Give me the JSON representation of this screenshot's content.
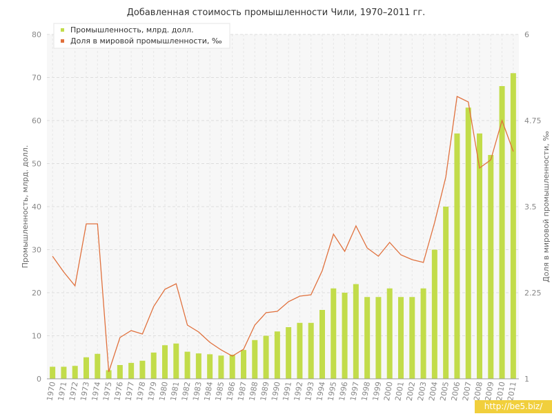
{
  "chart_data": {
    "type": "bar+line",
    "title": "Добавленная стоимость промышленности Чили, 1970–2011 гг.",
    "categories": [
      "1970",
      "1971",
      "1972",
      "1973",
      "1974",
      "1975",
      "1976",
      "1977",
      "1978",
      "1979",
      "1980",
      "1981",
      "1982",
      "1983",
      "1984",
      "1985",
      "1986",
      "1987",
      "1988",
      "1989",
      "1990",
      "1991",
      "1992",
      "1993",
      "1994",
      "1995",
      "1996",
      "1997",
      "1998",
      "1999",
      "2000",
      "2001",
      "2002",
      "2003",
      "2004",
      "2005",
      "2006",
      "2007",
      "2008",
      "2009",
      "2010",
      "2011"
    ],
    "series": [
      {
        "name": "Промышленность, млрд. долл.",
        "type": "bar",
        "axis": "left",
        "color": "#c2dc4a",
        "values": [
          2.8,
          2.8,
          3.0,
          5.0,
          5.8,
          2.0,
          3.2,
          3.7,
          4.2,
          6.1,
          7.8,
          8.2,
          6.3,
          5.9,
          5.7,
          5.4,
          5.6,
          6.7,
          9.0,
          10.0,
          11.0,
          12.0,
          13.0,
          13.0,
          16.0,
          21.0,
          20.0,
          22.0,
          19.0,
          19.0,
          21.0,
          19.0,
          19.0,
          21.0,
          30.0,
          40.0,
          57.0,
          63.0,
          57.0,
          52.0,
          68.0,
          71.0
        ]
      },
      {
        "name": "Доля в мировой промышленности, ‰",
        "type": "line",
        "axis": "right",
        "color": "#e0703c",
        "values": [
          2.78,
          2.55,
          2.35,
          3.25,
          3.25,
          1.1,
          1.6,
          1.7,
          1.65,
          2.05,
          2.3,
          2.38,
          1.78,
          1.68,
          1.53,
          1.42,
          1.33,
          1.43,
          1.78,
          1.96,
          1.98,
          2.12,
          2.2,
          2.22,
          2.57,
          3.1,
          2.85,
          3.22,
          2.9,
          2.78,
          2.98,
          2.8,
          2.73,
          2.69,
          3.27,
          3.93,
          5.1,
          5.02,
          4.06,
          4.18,
          4.75,
          4.3
        ]
      }
    ],
    "ylabel": "Промышленность, млрд. долл.",
    "y2label": "Доля в мировой промышленности, ‰",
    "ylim": [
      0,
      80
    ],
    "yticks": [
      "0",
      "10",
      "20",
      "30",
      "40",
      "50",
      "60",
      "70",
      "80"
    ],
    "y2lim": [
      1,
      6
    ],
    "y2ticks": [
      "1",
      "2.25",
      "3.5",
      "4.75",
      "6"
    ],
    "grid": true,
    "legend_position": "top-left"
  },
  "watermark": "http://be5.biz/"
}
